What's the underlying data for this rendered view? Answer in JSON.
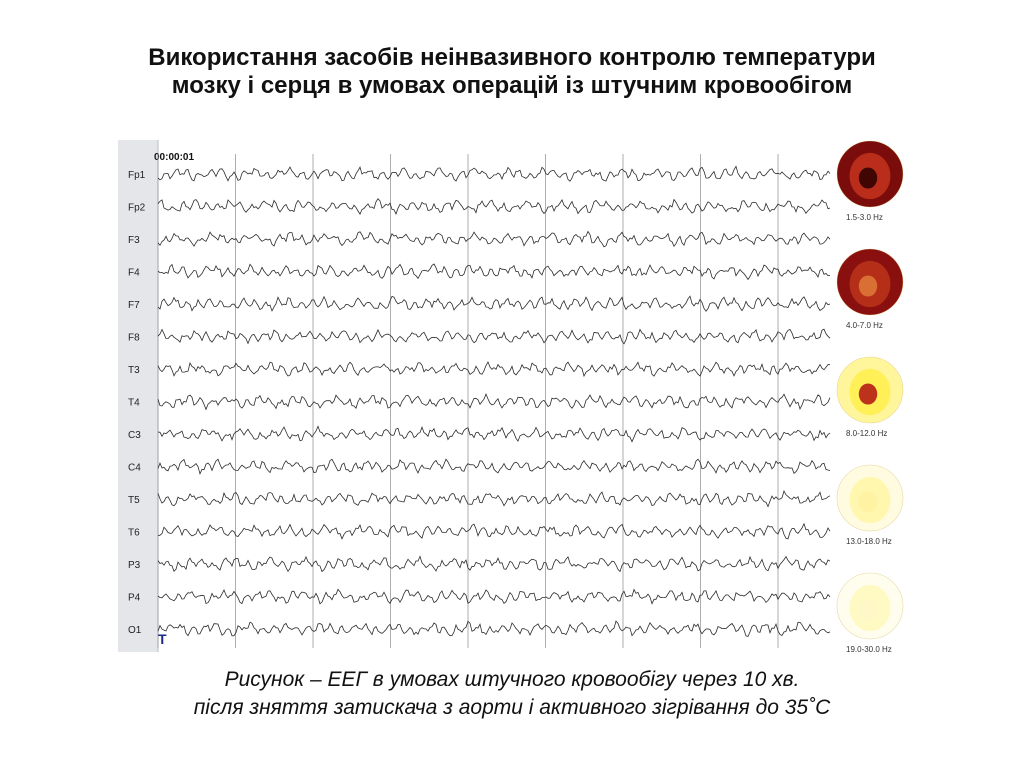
{
  "title": {
    "line1": "Використання засобів неінвазивного контролю температури",
    "line2": "мозку і серця в умовах операцій із штучним кровообігом"
  },
  "eeg": {
    "timestamp": "00:00:01",
    "channels": [
      "Fp1",
      "Fp2",
      "F3",
      "F4",
      "F7",
      "F8",
      "T3",
      "T4",
      "C3",
      "C4",
      "T5",
      "T6",
      "P3",
      "P4",
      "O1"
    ],
    "maps": [
      {
        "band": "1.5-3.0 Hz",
        "color_outer": "#7a0c0c",
        "color_mid": "#c0311c",
        "color_inner": "#2a0000"
      },
      {
        "band": "4.0-7.0 Hz",
        "color_outer": "#8a1010",
        "color_mid": "#b8321a",
        "color_inner": "#e07a3a"
      },
      {
        "band": "8.0-12.0 Hz",
        "color_outer": "#fff59a",
        "color_mid": "#ffef50",
        "color_inner": "#b01010"
      },
      {
        "band": "13.0-18.0 Hz",
        "color_outer": "#fffbe0",
        "color_mid": "#fff6a8",
        "color_inner": "#fff1a0"
      },
      {
        "band": "19.0-30.0 Hz",
        "color_outer": "#fffdee",
        "color_mid": "#fff8bf",
        "color_inner": "#fff7c8"
      }
    ]
  },
  "caption": {
    "line1": "Рисунок – ЕЕГ в умовах штучного кровообігу через 10 хв.",
    "line2": "після зняття затискача з аорти і активного зігрівання до 35˚С"
  }
}
